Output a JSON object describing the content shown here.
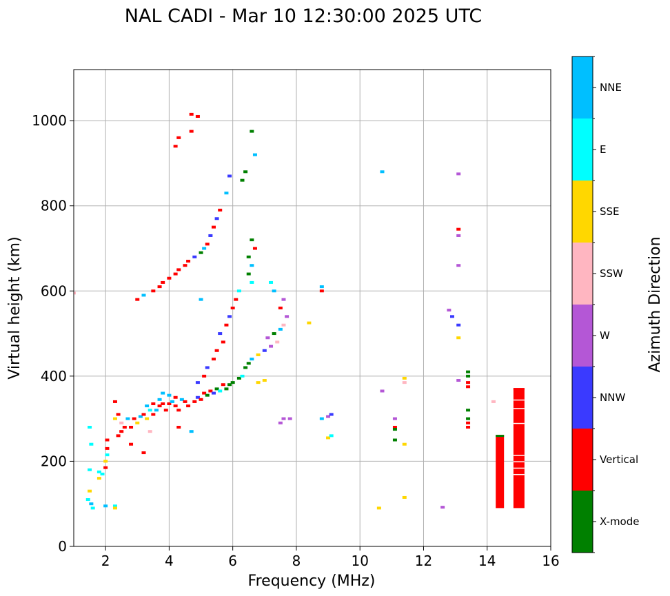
{
  "chart_data": {
    "type": "scatter",
    "title": "NAL CADI - Mar 10 12:30:00 2025 UTC",
    "xlabel": "Frequency (MHz)",
    "ylabel": "Virtual height (km)",
    "xlim": [
      1,
      16
    ],
    "ylim": [
      0,
      1120
    ],
    "xticks": [
      2,
      4,
      6,
      8,
      10,
      12,
      14,
      16
    ],
    "yticks": [
      0,
      200,
      400,
      600,
      800,
      1000
    ],
    "grid": true,
    "colorbar": {
      "label": "Azimuth Direction",
      "categories": [
        "X-mode",
        "Vertical",
        "NNW",
        "W",
        "SSW",
        "SSE",
        "E",
        "NNE"
      ],
      "colors": [
        "#008000",
        "#ff0000",
        "#3a3aff",
        "#b457d6",
        "#ffb6c1",
        "#ffd700",
        "#00ffff",
        "#00bfff"
      ]
    },
    "points": [
      [
        1.5,
        280,
        "E"
      ],
      [
        1.55,
        240,
        "E"
      ],
      [
        1.5,
        180,
        "E"
      ],
      [
        1.45,
        110,
        "E"
      ],
      [
        1.55,
        100,
        "NNE"
      ],
      [
        1.6,
        90,
        "E"
      ],
      [
        1.5,
        130,
        "SSE"
      ],
      [
        1.8,
        175,
        "E"
      ],
      [
        1.8,
        160,
        "SSE"
      ],
      [
        1.9,
        170,
        "E"
      ],
      [
        2.0,
        185,
        "Vertical"
      ],
      [
        2.0,
        200,
        "SSE"
      ],
      [
        2.05,
        215,
        "E"
      ],
      [
        2.05,
        230,
        "Vertical"
      ],
      [
        2.05,
        250,
        "Vertical"
      ],
      [
        2.0,
        95,
        "NNE"
      ],
      [
        2.3,
        95,
        "E"
      ],
      [
        2.3,
        90,
        "SSE"
      ],
      [
        2.3,
        340,
        "Vertical"
      ],
      [
        2.3,
        300,
        "SSE"
      ],
      [
        2.4,
        260,
        "Vertical"
      ],
      [
        2.5,
        270,
        "Vertical"
      ],
      [
        2.6,
        280,
        "Vertical"
      ],
      [
        2.5,
        290,
        "SSW"
      ],
      [
        2.7,
        300,
        "NNE"
      ],
      [
        2.4,
        310,
        "Vertical"
      ],
      [
        2.8,
        280,
        "Vertical"
      ],
      [
        3.0,
        290,
        "SSE"
      ],
      [
        2.9,
        300,
        "Vertical"
      ],
      [
        3.1,
        305,
        "NNE"
      ],
      [
        3.2,
        310,
        "Vertical"
      ],
      [
        3.3,
        300,
        "SSE"
      ],
      [
        3.4,
        320,
        "E"
      ],
      [
        3.5,
        310,
        "Vertical"
      ],
      [
        3.6,
        320,
        "NNE"
      ],
      [
        3.7,
        330,
        "Vertical"
      ],
      [
        3.3,
        330,
        "NNE"
      ],
      [
        3.5,
        335,
        "Vertical"
      ],
      [
        3.7,
        345,
        "NNE"
      ],
      [
        3.8,
        335,
        "Vertical"
      ],
      [
        3.9,
        320,
        "Vertical"
      ],
      [
        4.0,
        335,
        "Vertical"
      ],
      [
        4.1,
        340,
        "NNE"
      ],
      [
        4.2,
        330,
        "Vertical"
      ],
      [
        4.3,
        320,
        "Vertical"
      ],
      [
        3.8,
        360,
        "NNE"
      ],
      [
        4.0,
        355,
        "NNE"
      ],
      [
        4.2,
        350,
        "Vertical"
      ],
      [
        4.4,
        345,
        "NNE"
      ],
      [
        4.5,
        340,
        "Vertical"
      ],
      [
        4.6,
        330,
        "Vertical"
      ],
      [
        4.8,
        340,
        "Vertical"
      ],
      [
        4.9,
        350,
        "NNW"
      ],
      [
        5.0,
        345,
        "Vertical"
      ],
      [
        5.1,
        360,
        "Vertical"
      ],
      [
        5.2,
        355,
        "X-mode"
      ],
      [
        5.3,
        365,
        "Vertical"
      ],
      [
        5.4,
        360,
        "NNW"
      ],
      [
        5.5,
        370,
        "X-mode"
      ],
      [
        5.6,
        365,
        "E"
      ],
      [
        5.7,
        380,
        "Vertical"
      ],
      [
        5.8,
        370,
        "X-mode"
      ],
      [
        5.9,
        380,
        "X-mode"
      ],
      [
        6.0,
        385,
        "X-mode"
      ],
      [
        6.2,
        395,
        "X-mode"
      ],
      [
        6.3,
        400,
        "E"
      ],
      [
        6.4,
        420,
        "X-mode"
      ],
      [
        6.5,
        430,
        "X-mode"
      ],
      [
        6.6,
        440,
        "NNE"
      ],
      [
        6.8,
        450,
        "SSE"
      ],
      [
        7.0,
        460,
        "NNW"
      ],
      [
        7.2,
        470,
        "W"
      ],
      [
        7.4,
        480,
        "SSW"
      ],
      [
        7.1,
        490,
        "W"
      ],
      [
        7.3,
        500,
        "X-mode"
      ],
      [
        7.5,
        510,
        "NNE"
      ],
      [
        7.6,
        520,
        "SSW"
      ],
      [
        7.7,
        540,
        "W"
      ],
      [
        7.5,
        560,
        "Vertical"
      ],
      [
        7.6,
        580,
        "W"
      ],
      [
        7.3,
        600,
        "NNE"
      ],
      [
        7.2,
        620,
        "E"
      ],
      [
        4.9,
        385,
        "NNW"
      ],
      [
        5.1,
        400,
        "Vertical"
      ],
      [
        5.2,
        420,
        "NNW"
      ],
      [
        5.4,
        440,
        "Vertical"
      ],
      [
        5.5,
        460,
        "Vertical"
      ],
      [
        5.7,
        480,
        "Vertical"
      ],
      [
        5.6,
        500,
        "NNW"
      ],
      [
        5.8,
        520,
        "Vertical"
      ],
      [
        5.9,
        540,
        "NNW"
      ],
      [
        6.0,
        560,
        "Vertical"
      ],
      [
        6.1,
        580,
        "Vertical"
      ],
      [
        6.2,
        600,
        "E"
      ],
      [
        6.6,
        620,
        "E"
      ],
      [
        6.5,
        640,
        "X-mode"
      ],
      [
        6.6,
        660,
        "NNE"
      ],
      [
        6.5,
        680,
        "X-mode"
      ],
      [
        6.7,
        700,
        "Vertical"
      ],
      [
        6.6,
        720,
        "X-mode"
      ],
      [
        3.0,
        580,
        "Vertical"
      ],
      [
        3.2,
        590,
        "NNE"
      ],
      [
        3.5,
        600,
        "Vertical"
      ],
      [
        3.7,
        610,
        "Vertical"
      ],
      [
        3.8,
        620,
        "Vertical"
      ],
      [
        4.0,
        630,
        "Vertical"
      ],
      [
        4.2,
        640,
        "Vertical"
      ],
      [
        4.3,
        650,
        "Vertical"
      ],
      [
        4.5,
        660,
        "Vertical"
      ],
      [
        4.6,
        670,
        "Vertical"
      ],
      [
        4.8,
        680,
        "NNW"
      ],
      [
        5.0,
        690,
        "X-mode"
      ],
      [
        5.1,
        700,
        "NNE"
      ],
      [
        5.2,
        710,
        "Vertical"
      ],
      [
        5.3,
        730,
        "NNW"
      ],
      [
        5.4,
        750,
        "Vertical"
      ],
      [
        5.5,
        770,
        "NNW"
      ],
      [
        5.6,
        790,
        "Vertical"
      ],
      [
        5.8,
        830,
        "NNE"
      ],
      [
        5.9,
        870,
        "NNW"
      ],
      [
        6.3,
        860,
        "X-mode"
      ],
      [
        6.4,
        880,
        "X-mode"
      ],
      [
        6.7,
        920,
        "NNE"
      ],
      [
        6.6,
        975,
        "X-mode"
      ],
      [
        4.2,
        940,
        "Vertical"
      ],
      [
        4.3,
        960,
        "Vertical"
      ],
      [
        4.7,
        975,
        "Vertical"
      ],
      [
        4.9,
        1010,
        "Vertical"
      ],
      [
        4.7,
        1015,
        "Vertical"
      ],
      [
        1.0,
        595,
        "SSW"
      ],
      [
        5.0,
        580,
        "NNE"
      ],
      [
        4.7,
        270,
        "NNE"
      ],
      [
        4.3,
        280,
        "Vertical"
      ],
      [
        3.2,
        220,
        "Vertical"
      ],
      [
        2.8,
        240,
        "Vertical"
      ],
      [
        3.4,
        270,
        "SSW"
      ],
      [
        7.6,
        300,
        "W"
      ],
      [
        7.5,
        290,
        "W"
      ],
      [
        7.8,
        300,
        "W"
      ],
      [
        6.8,
        385,
        "SSE"
      ],
      [
        7.0,
        390,
        "SSE"
      ],
      [
        8.4,
        525,
        "SSE"
      ],
      [
        8.8,
        600,
        "Vertical"
      ],
      [
        8.8,
        610,
        "NNE"
      ],
      [
        8.8,
        300,
        "NNE"
      ],
      [
        9.0,
        305,
        "W"
      ],
      [
        9.1,
        310,
        "NNW"
      ],
      [
        9.0,
        255,
        "SSE"
      ],
      [
        9.1,
        260,
        "E"
      ],
      [
        10.7,
        880,
        "NNE"
      ],
      [
        10.7,
        365,
        "W"
      ],
      [
        10.6,
        90,
        "SSE"
      ],
      [
        11.1,
        300,
        "W"
      ],
      [
        11.1,
        280,
        "Vertical"
      ],
      [
        11.1,
        275,
        "X-mode"
      ],
      [
        11.1,
        250,
        "X-mode"
      ],
      [
        11.4,
        385,
        "SSW"
      ],
      [
        11.4,
        395,
        "SSE"
      ],
      [
        11.4,
        240,
        "SSE"
      ],
      [
        11.4,
        115,
        "SSE"
      ],
      [
        12.6,
        92,
        "W"
      ],
      [
        12.8,
        555,
        "W"
      ],
      [
        12.9,
        540,
        "NNW"
      ],
      [
        13.1,
        520,
        "NNW"
      ],
      [
        13.1,
        490,
        "SSE"
      ],
      [
        13.1,
        390,
        "W"
      ],
      [
        13.1,
        875,
        "W"
      ],
      [
        13.1,
        745,
        "Vertical"
      ],
      [
        13.1,
        730,
        "W"
      ],
      [
        13.1,
        660,
        "W"
      ],
      [
        13.4,
        410,
        "X-mode"
      ],
      [
        13.4,
        400,
        "X-mode"
      ],
      [
        13.4,
        385,
        "Vertical"
      ],
      [
        13.4,
        375,
        "Vertical"
      ],
      [
        13.4,
        320,
        "X-mode"
      ],
      [
        13.4,
        300,
        "X-mode"
      ],
      [
        13.4,
        290,
        "Vertical"
      ],
      [
        13.4,
        280,
        "Vertical"
      ],
      [
        14.2,
        340,
        "SSW"
      ]
    ],
    "bars": [
      {
        "x": 14.4,
        "y0": 90,
        "y1": 262,
        "azimuth": "Vertical",
        "cap": "X-mode"
      },
      {
        "x": 15.0,
        "y0": 90,
        "y1": 372,
        "azimuth": "Vertical",
        "cap": "Vertical"
      }
    ]
  }
}
